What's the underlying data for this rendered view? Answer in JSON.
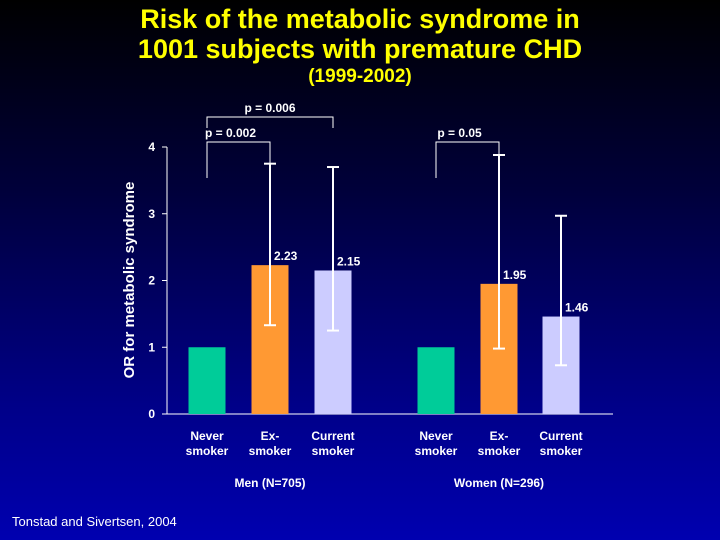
{
  "title_line1": "Risk of the metabolic syndrome in",
  "title_line2": "1001 subjects with premature CHD",
  "subtitle": "(1999-2002)",
  "source": "Tonstad and Sivertsen, 2004",
  "colors": {
    "never": "#00cc99",
    "ex": "#ff9933",
    "current": "#ccccff",
    "title": "#ffff00",
    "text": "#ffffff"
  },
  "chart_data": {
    "type": "bar",
    "ylabel": "OR for metabolic syndrome",
    "ylim": [
      0,
      4
    ],
    "yticks": [
      "0",
      "1",
      "2",
      "3",
      "4"
    ],
    "groups": [
      {
        "name": "Men (N=705)",
        "bars": [
          {
            "category": "Never smoker",
            "line1": "Never",
            "line2": "smoker",
            "value": 1.0,
            "label": "",
            "ci_low": null,
            "ci_high": null,
            "color_key": "never"
          },
          {
            "category": "Ex-smoker",
            "line1": "Ex-",
            "line2": "smoker",
            "value": 2.23,
            "label": "2.23",
            "ci_low": 1.33,
            "ci_high": 3.75,
            "color_key": "ex"
          },
          {
            "category": "Current smoker",
            "line1": "Current",
            "line2": "smoker",
            "value": 2.15,
            "label": "2.15",
            "ci_low": 1.25,
            "ci_high": 3.7,
            "color_key": "current"
          }
        ]
      },
      {
        "name": "Women (N=296)",
        "bars": [
          {
            "category": "Never smoker",
            "line1": "Never",
            "line2": "smoker",
            "value": 1.0,
            "label": "",
            "ci_low": null,
            "ci_high": null,
            "color_key": "never"
          },
          {
            "category": "Ex-smoker",
            "line1": "Ex-",
            "line2": "smoker",
            "value": 1.95,
            "label": "1.95",
            "ci_low": 0.98,
            "ci_high": 3.88,
            "color_key": "ex"
          },
          {
            "category": "Current smoker",
            "line1": "Current",
            "line2": "smoker",
            "value": 1.46,
            "label": "1.46",
            "ci_low": 0.73,
            "ci_high": 2.97,
            "color_key": "current"
          }
        ]
      }
    ],
    "annotations": [
      {
        "text": "p = 0.006",
        "from_group": 0,
        "from_bar": 0,
        "to_group": 0,
        "to_bar": 2
      },
      {
        "text": "p = 0.002",
        "from_group": 0,
        "from_bar": 0,
        "to_group": 0,
        "to_bar": 1
      },
      {
        "text": "p = 0.05",
        "from_group": 1,
        "from_bar": 0,
        "to_group": 1,
        "to_bar": 1
      }
    ]
  }
}
